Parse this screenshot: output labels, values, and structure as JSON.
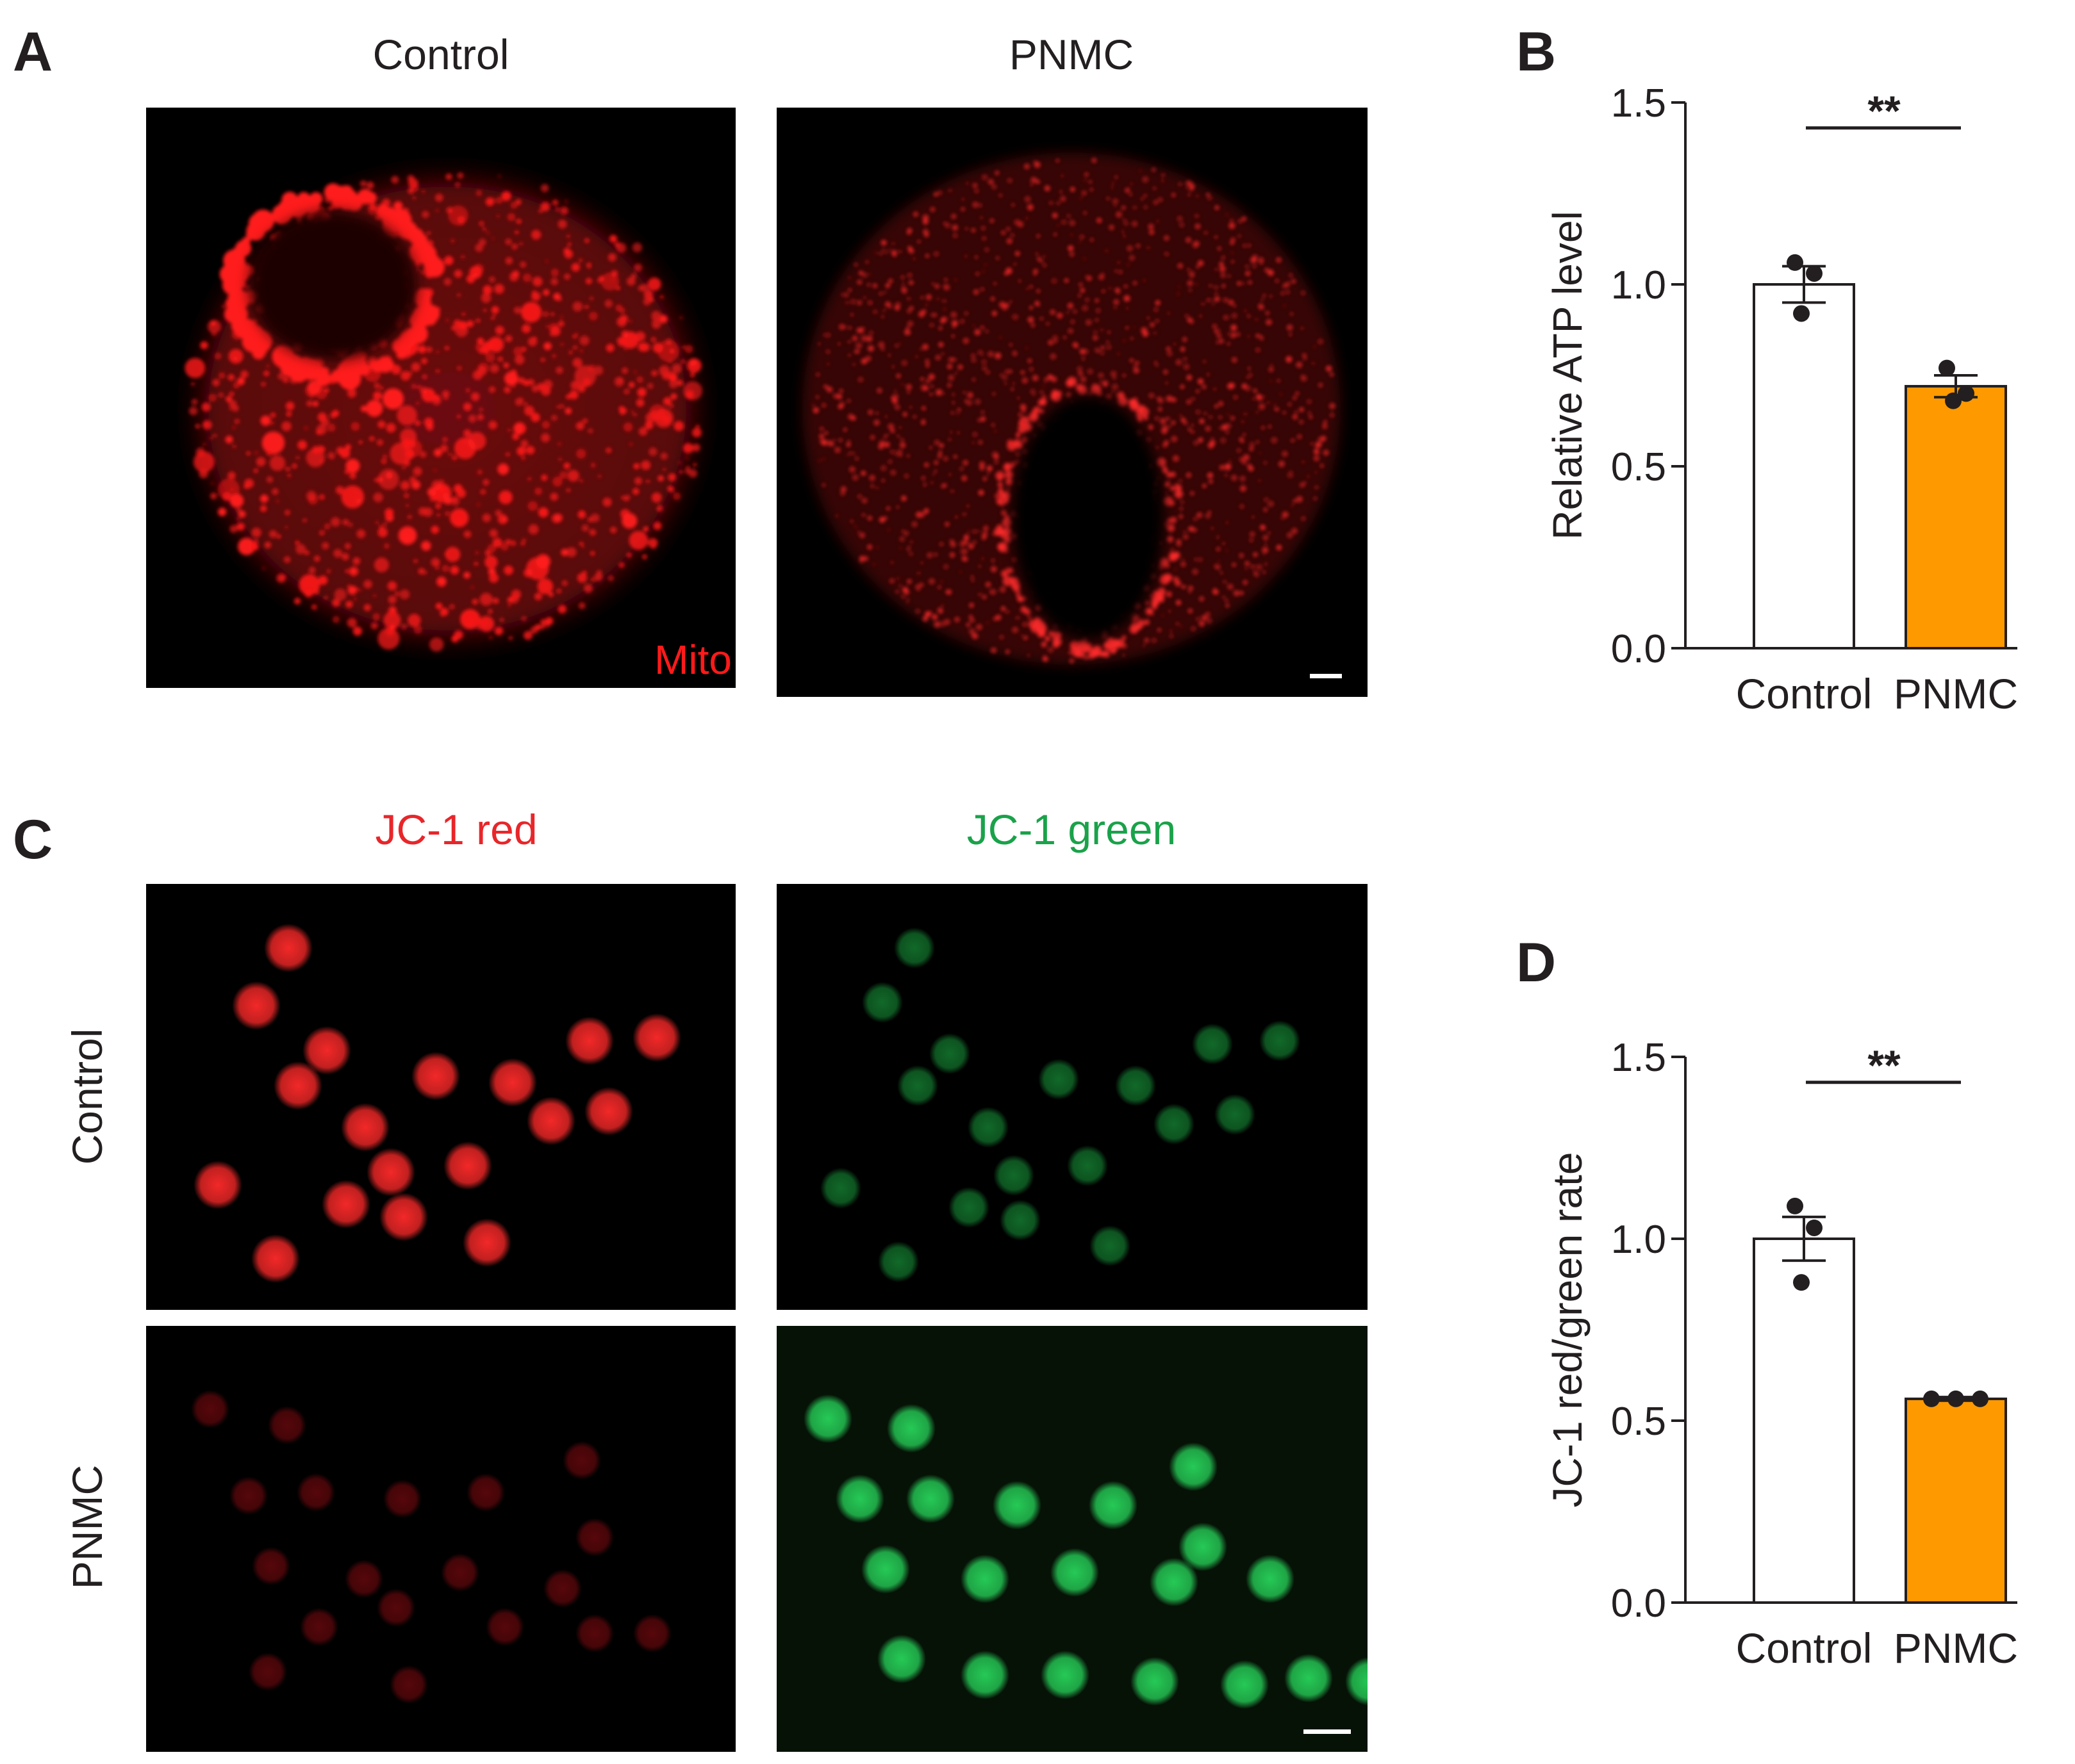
{
  "panel_a": {
    "letter": "A",
    "columns": [
      "Control",
      "PNMC"
    ],
    "stain_label": "Mito",
    "stain_color": "#ff1a1a"
  },
  "panel_b": {
    "letter": "B"
  },
  "panel_c": {
    "letter": "C",
    "columns": [
      {
        "label": "JC-1 red",
        "color": "#e8262a"
      },
      {
        "label": "JC-1 green",
        "color": "#1aa24a"
      }
    ],
    "rows": [
      "Control",
      "PNMC"
    ]
  },
  "panel_d": {
    "letter": "D"
  },
  "chart_data": [
    {
      "panel": "B",
      "type": "bar",
      "categories": [
        "Control",
        "PNMC"
      ],
      "values": [
        1.0,
        0.72
      ],
      "errors": [
        0.05,
        0.03
      ],
      "points": [
        [
          1.06,
          1.03,
          0.92
        ],
        [
          0.77,
          0.7,
          0.68
        ]
      ],
      "bar_colors": [
        "#ffffff",
        "#ff9900"
      ],
      "ylabel": "Relative ATP level",
      "ylim": [
        0,
        1.5
      ],
      "yticks": [
        "0.0",
        "0.5",
        "1.0",
        "1.5"
      ],
      "significance": "**"
    },
    {
      "panel": "D",
      "type": "bar",
      "categories": [
        "Control",
        "PNMC"
      ],
      "values": [
        1.0,
        0.56
      ],
      "errors": [
        0.06,
        0.005
      ],
      "points": [
        [
          1.09,
          1.03,
          0.88
        ],
        [
          0.56,
          0.56,
          0.56
        ]
      ],
      "bar_colors": [
        "#ffffff",
        "#ff9900"
      ],
      "ylabel": "JC-1 red/green rate",
      "ylim": [
        0,
        1.5
      ],
      "yticks": [
        "0.0",
        "0.5",
        "1.0",
        "1.5"
      ],
      "significance": "**"
    }
  ]
}
